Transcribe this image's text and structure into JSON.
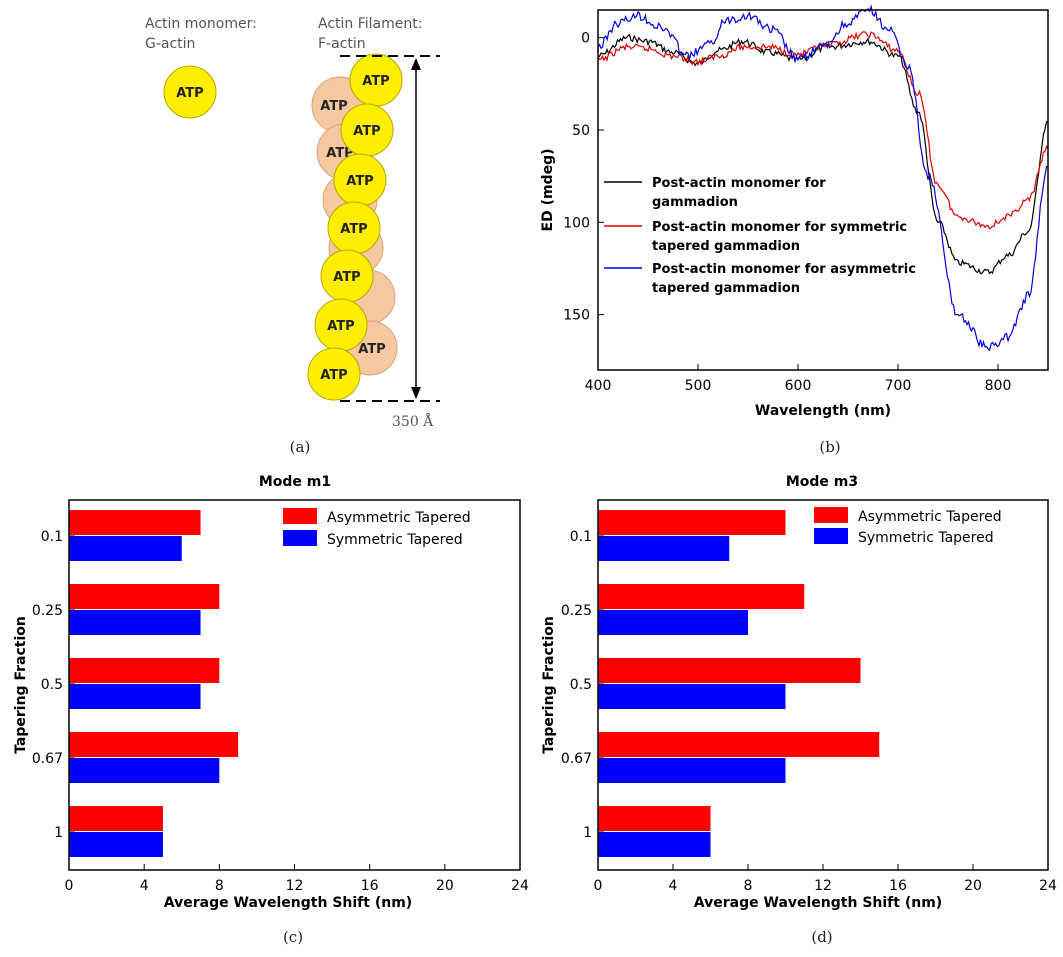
{
  "panel_a": {
    "label": "(a)",
    "monomer_title_line1": "Actin monomer:",
    "monomer_title_line2": "G-actin",
    "filament_title_line1": "Actin Filament:",
    "filament_title_line2": "F-actin",
    "atp_label": "ATP",
    "length_label": "350 Å",
    "colors": {
      "atp_yellow": "#ffee00",
      "atp_peach": "#f6c8a0"
    }
  },
  "chart_data": [
    {
      "id": "b",
      "type": "line",
      "panel_label": "(b)",
      "xlabel": "Wavelength (nm)",
      "ylabel": "ED (mdeg)",
      "xlim": [
        400,
        850
      ],
      "ylim": [
        180,
        -15
      ],
      "y_inverted": true,
      "xticks": [
        400,
        500,
        600,
        700,
        800
      ],
      "yticks": [
        0,
        50,
        100,
        150
      ],
      "legend_position": "center-left",
      "series": [
        {
          "name_line1": "Post-actin monomer for",
          "name_line2": "gammadion",
          "color": "#000000",
          "x": [
            400,
            430,
            450,
            475,
            500,
            520,
            545,
            570,
            600,
            630,
            670,
            700,
            720,
            740,
            760,
            790,
            810,
            830,
            850
          ],
          "y": [
            10,
            0,
            2,
            8,
            14,
            7,
            2,
            8,
            12,
            5,
            2,
            10,
            40,
            100,
            122,
            127,
            118,
            105,
            45
          ]
        },
        {
          "name_line1": "Post-actin monomer for symmetric",
          "name_line2": "tapered gammadion",
          "color": "#e00000",
          "x": [
            400,
            430,
            450,
            475,
            500,
            520,
            545,
            570,
            600,
            630,
            670,
            700,
            720,
            740,
            760,
            790,
            810,
            830,
            850
          ],
          "y": [
            12,
            5,
            6,
            10,
            13,
            10,
            5,
            5,
            9,
            4,
            -2,
            7,
            30,
            80,
            97,
            102,
            97,
            88,
            60
          ]
        },
        {
          "name_line1": "Post-actin monomer for asymmetric",
          "name_line2": "tapered gammadion",
          "color": "#0000e0",
          "x": [
            400,
            420,
            440,
            465,
            490,
            510,
            530,
            550,
            575,
            600,
            625,
            650,
            670,
            690,
            710,
            730,
            760,
            790,
            810,
            830,
            850
          ],
          "y": [
            5,
            -8,
            -12,
            -5,
            10,
            4,
            -10,
            -12,
            -4,
            12,
            5,
            -8,
            -15,
            -5,
            15,
            75,
            150,
            168,
            162,
            140,
            70
          ]
        }
      ]
    },
    {
      "id": "c",
      "type": "bar",
      "orientation": "horizontal",
      "title": "Mode m1",
      "panel_label": "(c)",
      "xlabel": "Average Wavelength Shift (nm)",
      "ylabel": "Tapering Fraction",
      "xlim": [
        0,
        24
      ],
      "xticks": [
        0,
        4,
        8,
        12,
        16,
        20,
        24
      ],
      "categories": [
        "0.1",
        "0.25",
        "0.5",
        "0.67",
        "1"
      ],
      "legend_position": "top-right",
      "series": [
        {
          "name": "Asymmetric Tapered",
          "color": "#ff0000",
          "values": [
            7,
            8,
            8,
            9,
            5
          ]
        },
        {
          "name": "Symmetric Tapered",
          "color": "#0000ff",
          "values": [
            6,
            7,
            7,
            8,
            5
          ]
        }
      ]
    },
    {
      "id": "d",
      "type": "bar",
      "orientation": "horizontal",
      "title": "Mode m3",
      "panel_label": "(d)",
      "xlabel": "Average Wavelength Shift (nm)",
      "ylabel": "Tapering Fraction",
      "xlim": [
        0,
        24
      ],
      "xticks": [
        0,
        4,
        8,
        12,
        16,
        20,
        24
      ],
      "categories": [
        "0.1",
        "0.25",
        "0.5",
        "0.67",
        "1"
      ],
      "legend_position": "top-right",
      "series": [
        {
          "name": "Asymmetric Tapered",
          "color": "#ff0000",
          "values": [
            10,
            11,
            14,
            15,
            6
          ]
        },
        {
          "name": "Symmetric Tapered",
          "color": "#0000ff",
          "values": [
            7,
            8,
            10,
            10,
            6
          ]
        }
      ]
    }
  ]
}
